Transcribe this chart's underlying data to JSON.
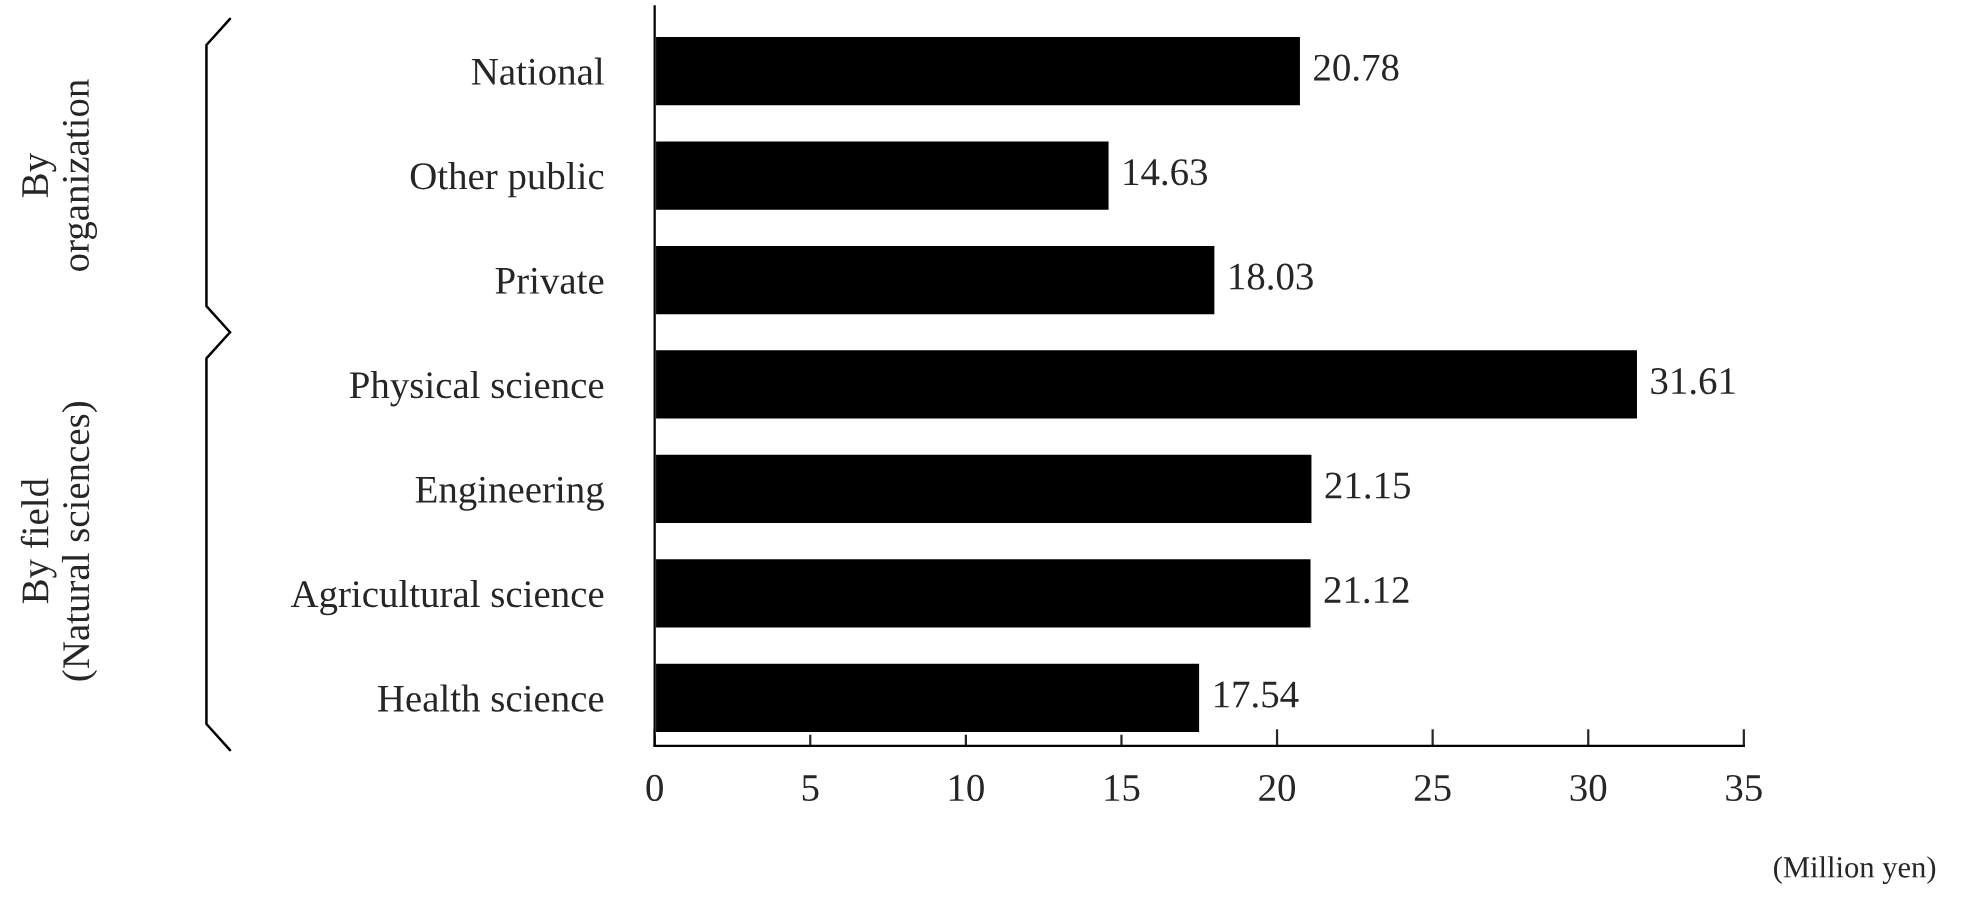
{
  "chart_data": {
    "type": "bar",
    "orientation": "horizontal",
    "categories": [
      "National",
      "Other public",
      "Private",
      "Physical science",
      "Engineering",
      "Agricultural science",
      "Health science"
    ],
    "values": [
      20.78,
      14.63,
      18.03,
      31.61,
      21.15,
      21.12,
      17.54
    ],
    "color": "#000000",
    "xlim": [
      0,
      35
    ],
    "xticks": [
      0,
      5,
      10,
      15,
      20,
      25,
      30,
      35
    ],
    "data_labels": true,
    "grid": false,
    "legend": false,
    "annotations": [
      "By\norganization",
      "By field\n(Natural sciences)",
      "(Million yen)"
    ]
  }
}
